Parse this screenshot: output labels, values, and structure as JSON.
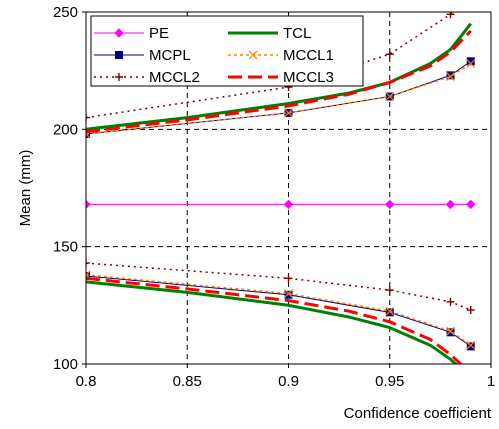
{
  "chart_data": {
    "type": "line",
    "title": "",
    "xlabel": "Confidence coefficient",
    "ylabel": "Mean (mm)",
    "xlim": [
      0.8,
      1.0
    ],
    "ylim": [
      100,
      250
    ],
    "xticks": [
      0.8,
      0.85,
      0.9,
      0.95,
      1
    ],
    "xtick_labels": [
      "0.8",
      "0.85",
      "0.9",
      "0.95",
      "1"
    ],
    "yticks": [
      100,
      150,
      200,
      250
    ],
    "ytick_labels": [
      "100",
      "150",
      "200",
      "250"
    ],
    "grid": "dashed",
    "legend_position": "top-left",
    "series": [
      {
        "name": "PE",
        "color": "#ff00ff",
        "dash": "",
        "width": 1,
        "marker": "diamond",
        "x": [
          0.8,
          0.9,
          0.95,
          0.98,
          0.99
        ],
        "lower": [
          168,
          168,
          168,
          168,
          168
        ]
      },
      {
        "name": "TCL",
        "color": "#008000",
        "dash": "",
        "width": 3,
        "marker": "none",
        "x": [
          0.8,
          0.85,
          0.9,
          0.93,
          0.95,
          0.97,
          0.98,
          0.99
        ],
        "upper": [
          200,
          205,
          211,
          215.5,
          220,
          228,
          234,
          245
        ],
        "lower": [
          135,
          130.5,
          125,
          120,
          115.5,
          108,
          102,
          94
        ]
      },
      {
        "name": "MCPL",
        "color": "#000080",
        "dash": "",
        "width": 1,
        "marker": "square",
        "x": [
          0.8,
          0.9,
          0.95,
          0.98,
          0.99
        ],
        "upper": [
          198,
          207,
          214,
          223,
          229
        ],
        "lower": [
          137.5,
          129.5,
          122,
          113.5,
          107.5
        ]
      },
      {
        "name": "MCCL1",
        "color": "#ff8000",
        "dash": "3,3",
        "width": 1.5,
        "marker": "x",
        "x": [
          0.8,
          0.9,
          0.95,
          0.98,
          0.99
        ],
        "upper": [
          198,
          207,
          214,
          222.5,
          228
        ],
        "lower": [
          138,
          130,
          122.5,
          114,
          108
        ]
      },
      {
        "name": "MCCL2",
        "color": "#800000",
        "dash": "2,4",
        "width": 1.5,
        "marker": "plus",
        "x": [
          0.8,
          0.9,
          0.95,
          0.98,
          0.99
        ],
        "upper": [
          205,
          218,
          232,
          249,
          258
        ],
        "lower": [
          143,
          136.5,
          131.5,
          126.5,
          123
        ]
      },
      {
        "name": "MCCL3",
        "color": "#ff0000",
        "dash": "14,6",
        "width": 3,
        "marker": "none",
        "x": [
          0.8,
          0.85,
          0.9,
          0.93,
          0.95,
          0.97,
          0.98,
          0.99
        ],
        "upper": [
          199,
          204,
          210,
          215,
          220,
          227,
          233,
          242
        ],
        "lower": [
          136.5,
          132,
          127,
          122.5,
          118,
          110.5,
          104,
          96
        ]
      }
    ]
  }
}
